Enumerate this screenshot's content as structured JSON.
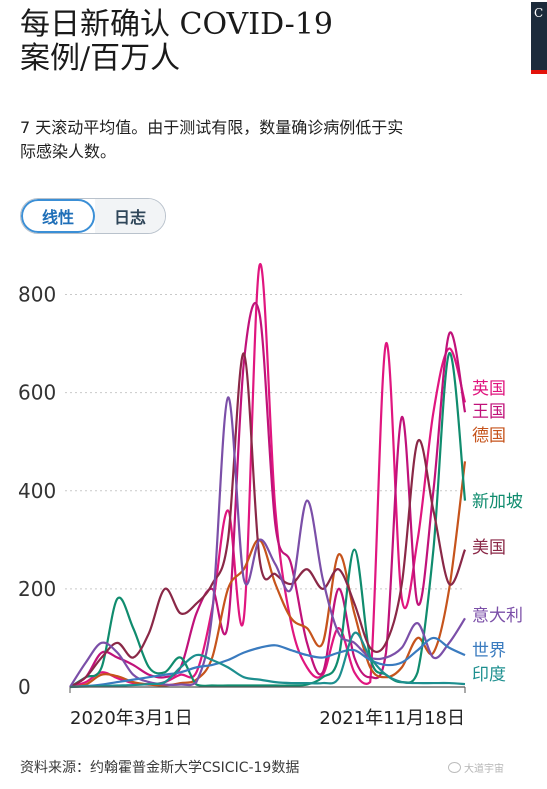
{
  "header": {
    "title": "每日新确认 COVID-19 案例/百万人",
    "subtitle": "7 天滚动平均值。由于测试有限，数量确诊病例低于实际感染人数。"
  },
  "toggle": {
    "linear_label": "线性",
    "log_label": "日志",
    "selected": "线性"
  },
  "source": "资料来源：约翰霍普金斯大学CSICIC-19数据",
  "watermark": "大道宇宙",
  "chart_data": {
    "type": "line",
    "title": "每日新确认 COVID-19 案例/百万人",
    "x_ticks": [
      "2020年3月1日",
      "2021年11月18日"
    ],
    "ylim": [
      0,
      850
    ],
    "y_ticks": [
      0,
      200,
      400,
      600,
      800
    ],
    "grid": true,
    "legend_placement": "right, next to line ends",
    "x": [
      0,
      0.04,
      0.08,
      0.12,
      0.16,
      0.2,
      0.24,
      0.28,
      0.32,
      0.36,
      0.4,
      0.44,
      0.48,
      0.52,
      0.56,
      0.6,
      0.64,
      0.68,
      0.72,
      0.76,
      0.8,
      0.84,
      0.88,
      0.92,
      0.96,
      1
    ],
    "series": [
      {
        "name": "英国",
        "color": "#e0167f",
        "values": [
          0,
          10,
          30,
          18,
          8,
          5,
          10,
          25,
          30,
          160,
          360,
          140,
          860,
          360,
          130,
          40,
          25,
          120,
          30,
          10,
          700,
          180,
          300,
          560,
          690,
          580
        ]
      },
      {
        "name": "王国",
        "color": "#c0127a",
        "values": [
          0,
          20,
          70,
          60,
          45,
          25,
          20,
          40,
          150,
          200,
          130,
          660,
          760,
          330,
          250,
          90,
          30,
          200,
          60,
          20,
          70,
          550,
          170,
          400,
          720,
          560
        ]
      },
      {
        "name": "德国",
        "color": "#c6541c",
        "values": [
          0,
          5,
          25,
          22,
          10,
          5,
          3,
          8,
          15,
          60,
          200,
          240,
          300,
          210,
          140,
          120,
          90,
          270,
          150,
          40,
          20,
          40,
          100,
          70,
          200,
          460
        ]
      },
      {
        "name": "新加坡",
        "color": "#108c6e",
        "values": [
          0,
          20,
          40,
          180,
          120,
          40,
          30,
          60,
          5,
          3,
          3,
          3,
          3,
          3,
          3,
          5,
          20,
          60,
          280,
          60,
          25,
          10,
          30,
          280,
          680,
          380
        ]
      },
      {
        "name": "美国",
        "color": "#8a2847",
        "values": [
          0,
          20,
          60,
          90,
          60,
          110,
          200,
          150,
          170,
          210,
          300,
          680,
          260,
          230,
          210,
          240,
          200,
          240,
          170,
          80,
          90,
          210,
          500,
          360,
          210,
          280
        ]
      },
      {
        "name": "意大利",
        "color": "#7b4fa8",
        "values": [
          0,
          50,
          90,
          70,
          25,
          10,
          5,
          5,
          10,
          150,
          590,
          220,
          300,
          250,
          200,
          380,
          220,
          110,
          90,
          60,
          60,
          80,
          130,
          60,
          90,
          140
        ]
      },
      {
        "name": "世界",
        "color": "#3a7bbf",
        "values": [
          0,
          2,
          5,
          10,
          15,
          20,
          25,
          30,
          40,
          45,
          55,
          70,
          80,
          85,
          75,
          65,
          60,
          70,
          75,
          55,
          45,
          50,
          75,
          100,
          80,
          65
        ]
      },
      {
        "name": "印度",
        "color": "#1d8f8f",
        "values": [
          0,
          1,
          2,
          3,
          4,
          6,
          10,
          40,
          65,
          55,
          40,
          20,
          15,
          10,
          8,
          8,
          8,
          18,
          110,
          60,
          25,
          10,
          8,
          8,
          8,
          6
        ]
      }
    ]
  }
}
